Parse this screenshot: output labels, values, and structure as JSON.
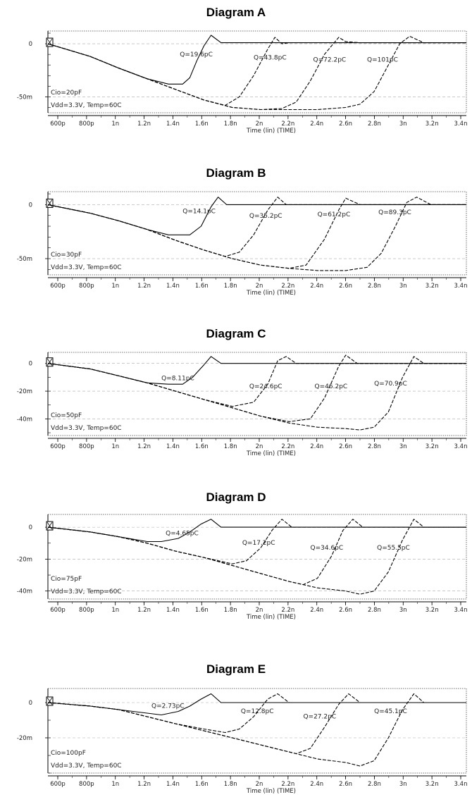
{
  "chart_data": [
    {
      "type": "line",
      "title": "Diagram A",
      "xlabel": "Time (lin) (TIME)",
      "x_ticks": [
        "600p",
        "800p",
        "1n",
        "1.2n",
        "1.4n",
        "1.6n",
        "1.8n",
        "2n",
        "2.2n",
        "2.4n",
        "2.6n",
        "2.8n",
        "3n",
        "3.2n",
        "3.4n"
      ],
      "y_ticks": [
        {
          "v": 0,
          "label": "0"
        },
        {
          "v": -50,
          "label": "-50m"
        }
      ],
      "ylim": [
        -65,
        12
      ],
      "xlim": [
        0.5,
        3.45
      ],
      "notes": [
        "Cio=20pF",
        "Vdd=3.3V, Temp=60C"
      ],
      "labels": [
        {
          "text": "Q=19.6pC",
          "x": 1.43,
          "y": -12
        },
        {
          "text": "Q=43.8pC",
          "x": 1.95,
          "y": -15
        },
        {
          "text": "Q=72.2pC",
          "x": 2.37,
          "y": -17
        },
        {
          "text": "Q=101pC",
          "x": 2.75,
          "y": -17
        }
      ],
      "series": [
        {
          "values_x": [
            0.5,
            0.8,
            1.0,
            1.2,
            1.35,
            1.45,
            1.5,
            1.55,
            1.6,
            1.65,
            1.72,
            2.6,
            3.45
          ],
          "values_y": [
            0,
            -12,
            -23,
            -33,
            -38,
            -38,
            -32,
            -16,
            -2,
            8,
            1,
            1,
            1
          ],
          "dash": false
        },
        {
          "values_x": [
            0.5,
            0.8,
            1.0,
            1.2,
            1.4,
            1.6,
            1.75,
            1.85,
            1.95,
            2.05,
            2.1,
            2.15,
            2.2,
            3.45
          ],
          "values_y": [
            0,
            -12,
            -23,
            -33,
            -43,
            -53,
            -58,
            -50,
            -30,
            -5,
            6,
            0,
            1,
            1
          ],
          "dash": true
        },
        {
          "values_x": [
            0.5,
            0.8,
            1.0,
            1.2,
            1.4,
            1.6,
            1.8,
            2.0,
            2.15,
            2.25,
            2.35,
            2.45,
            2.55,
            2.6,
            2.7,
            3.45
          ],
          "values_y": [
            0,
            -12,
            -23,
            -33,
            -43,
            -53,
            -60,
            -62,
            -61,
            -55,
            -35,
            -10,
            6,
            2,
            1,
            1
          ],
          "dash": true
        },
        {
          "values_x": [
            0.5,
            0.8,
            1.0,
            1.2,
            1.4,
            1.6,
            1.8,
            2.0,
            2.2,
            2.4,
            2.6,
            2.7,
            2.8,
            2.9,
            2.98,
            3.05,
            3.15,
            3.45
          ],
          "values_y": [
            0,
            -12,
            -23,
            -33,
            -43,
            -53,
            -60,
            -62,
            -62,
            -62,
            -60,
            -57,
            -45,
            -20,
            0,
            7,
            1,
            1
          ],
          "dash": true
        }
      ]
    },
    {
      "type": "line",
      "title": "Diagram B",
      "xlabel": "Time (lin) (TIME)",
      "x_ticks": [
        "600p",
        "800p",
        "1n",
        "1.2n",
        "1.4n",
        "1.6n",
        "1.8n",
        "2n",
        "2.2n",
        "2.4n",
        "2.6n",
        "2.8n",
        "3n",
        "3.2n",
        "3.4n"
      ],
      "y_ticks": [
        {
          "v": 0,
          "label": "0"
        },
        {
          "v": -50,
          "label": "-50m"
        }
      ],
      "ylim": [
        -65,
        12
      ],
      "xlim": [
        0.5,
        3.45
      ],
      "notes": [
        "Cio=30pF",
        "Vdd=3.3V, Temp=60C"
      ],
      "labels": [
        {
          "text": "Q=14.1pC",
          "x": 1.45,
          "y": -8
        },
        {
          "text": "Q=35.2pC",
          "x": 1.92,
          "y": -12
        },
        {
          "text": "Q=61.2pC",
          "x": 2.4,
          "y": -11
        },
        {
          "text": "Q=89.3pC",
          "x": 2.83,
          "y": -9
        }
      ],
      "series": [
        {
          "values_x": [
            0.5,
            0.8,
            1.0,
            1.2,
            1.35,
            1.5,
            1.58,
            1.65,
            1.7,
            1.76,
            2.6,
            3.45
          ],
          "values_y": [
            0,
            -8,
            -15,
            -23,
            -28,
            -28,
            -20,
            -2,
            7,
            0,
            0,
            0
          ],
          "dash": false
        },
        {
          "values_x": [
            0.5,
            0.8,
            1.0,
            1.2,
            1.4,
            1.6,
            1.75,
            1.85,
            1.95,
            2.05,
            2.12,
            2.18,
            3.45
          ],
          "values_y": [
            0,
            -8,
            -15,
            -23,
            -33,
            -42,
            -48,
            -44,
            -28,
            -5,
            7,
            0,
            0
          ],
          "dash": true
        },
        {
          "values_x": [
            0.5,
            0.8,
            1.0,
            1.2,
            1.4,
            1.6,
            1.8,
            2.0,
            2.2,
            2.32,
            2.45,
            2.55,
            2.6,
            2.7,
            3.45
          ],
          "values_y": [
            0,
            -8,
            -15,
            -23,
            -33,
            -42,
            -50,
            -56,
            -59,
            -56,
            -32,
            -5,
            6,
            0,
            0
          ],
          "dash": true
        },
        {
          "values_x": [
            0.5,
            0.8,
            1.0,
            1.2,
            1.4,
            1.6,
            1.8,
            2.0,
            2.2,
            2.4,
            2.6,
            2.75,
            2.85,
            2.95,
            3.03,
            3.1,
            3.2,
            3.45
          ],
          "values_y": [
            0,
            -8,
            -15,
            -23,
            -33,
            -42,
            -50,
            -56,
            -59,
            -61,
            -61,
            -58,
            -45,
            -20,
            2,
            7,
            0,
            0
          ],
          "dash": true
        }
      ]
    },
    {
      "type": "line",
      "title": "Diagram C",
      "xlabel": "Time (lin) (TIME)",
      "x_ticks": [
        "600p",
        "800p",
        "1n",
        "1.2n",
        "1.4n",
        "1.6n",
        "1.8n",
        "2n",
        "2.2n",
        "2.4n",
        "2.6n",
        "2.8n",
        "3n",
        "3.2n",
        "3.4n"
      ],
      "y_ticks": [
        {
          "v": 0,
          "label": "0"
        },
        {
          "v": -20,
          "label": "-20m"
        },
        {
          "v": -40,
          "label": "-40m"
        }
      ],
      "ylim": [
        -52,
        8
      ],
      "xlim": [
        0.5,
        3.45
      ],
      "notes": [
        "Cio=50pF",
        "Vdd=3.3V, Temp=60C"
      ],
      "labels": [
        {
          "text": "Q=8.11pC",
          "x": 1.3,
          "y": -12
        },
        {
          "text": "Q=24.6pC",
          "x": 1.92,
          "y": -18
        },
        {
          "text": "Q=46.2pC",
          "x": 2.38,
          "y": -18
        },
        {
          "text": "Q=70.9pC",
          "x": 2.8,
          "y": -16
        }
      ],
      "series": [
        {
          "values_x": [
            0.5,
            0.8,
            1.0,
            1.2,
            1.35,
            1.45,
            1.52,
            1.6,
            1.65,
            1.72,
            2.6,
            3.45
          ],
          "values_y": [
            0,
            -4,
            -9,
            -14,
            -15,
            -15,
            -10,
            -1,
            5,
            0,
            0,
            0
          ],
          "dash": false
        },
        {
          "values_x": [
            0.5,
            0.8,
            1.0,
            1.2,
            1.4,
            1.6,
            1.8,
            1.95,
            2.05,
            2.12,
            2.18,
            2.25,
            3.45
          ],
          "values_y": [
            0,
            -4,
            -9,
            -14,
            -20,
            -26,
            -31,
            -28,
            -15,
            2,
            5,
            0,
            0
          ],
          "dash": true
        },
        {
          "values_x": [
            0.5,
            0.8,
            1.0,
            1.2,
            1.4,
            1.6,
            1.8,
            2.0,
            2.2,
            2.35,
            2.45,
            2.55,
            2.6,
            2.68,
            3.45
          ],
          "values_y": [
            0,
            -4,
            -9,
            -14,
            -20,
            -26,
            -32,
            -38,
            -42,
            -40,
            -25,
            -2,
            6,
            0,
            0
          ],
          "dash": true
        },
        {
          "values_x": [
            0.5,
            0.8,
            1.0,
            1.2,
            1.4,
            1.6,
            1.8,
            2.0,
            2.2,
            2.4,
            2.6,
            2.7,
            2.8,
            2.9,
            3.0,
            3.08,
            3.15,
            3.45
          ],
          "values_y": [
            0,
            -4,
            -9,
            -14,
            -20,
            -26,
            -32,
            -38,
            -43,
            -46,
            -47,
            -48,
            -46,
            -35,
            -10,
            5,
            0,
            0
          ],
          "dash": true
        }
      ]
    },
    {
      "type": "line",
      "title": "Diagram D",
      "xlabel": "Time (lin) (TIME)",
      "x_ticks": [
        "600p",
        "800p",
        "1n",
        "1.2n",
        "1.4n",
        "1.6n",
        "1.8n",
        "2n",
        "2.2n",
        "2.4n",
        "2.6n",
        "2.8n",
        "3n",
        "3.2n",
        "3.4n"
      ],
      "y_ticks": [
        {
          "v": 0,
          "label": "0"
        },
        {
          "v": -20,
          "label": "-20m"
        },
        {
          "v": -40,
          "label": "-40m"
        }
      ],
      "ylim": [
        -45,
        8
      ],
      "xlim": [
        0.5,
        3.45
      ],
      "notes": [
        "Cio=75pF",
        "Vdd=3.3V, Temp=60C"
      ],
      "labels": [
        {
          "text": "Q=4.65pC",
          "x": 1.33,
          "y": -5
        },
        {
          "text": "Q=17.2pC",
          "x": 1.87,
          "y": -11
        },
        {
          "text": "Q=34.6pC",
          "x": 2.35,
          "y": -14
        },
        {
          "text": "Q=55.5pC",
          "x": 2.82,
          "y": -14
        }
      ],
      "series": [
        {
          "values_x": [
            0.5,
            0.8,
            1.0,
            1.2,
            1.3,
            1.42,
            1.5,
            1.58,
            1.65,
            1.72,
            2.6,
            3.45
          ],
          "values_y": [
            0,
            -3,
            -6,
            -9,
            -9,
            -7,
            -3,
            2,
            5,
            0,
            0,
            0
          ],
          "dash": false
        },
        {
          "values_x": [
            0.5,
            0.8,
            1.0,
            1.2,
            1.4,
            1.6,
            1.8,
            1.9,
            2.0,
            2.08,
            2.15,
            2.22,
            3.45
          ],
          "values_y": [
            0,
            -3,
            -6,
            -10,
            -15,
            -19,
            -23,
            -21,
            -13,
            -2,
            5,
            0,
            0
          ],
          "dash": true
        },
        {
          "values_x": [
            0.5,
            0.8,
            1.0,
            1.2,
            1.4,
            1.6,
            1.8,
            2.0,
            2.2,
            2.3,
            2.4,
            2.5,
            2.58,
            2.65,
            2.72,
            3.45
          ],
          "values_y": [
            0,
            -3,
            -6,
            -10,
            -15,
            -19,
            -24,
            -29,
            -34,
            -36,
            -32,
            -18,
            -2,
            5,
            0,
            0
          ],
          "dash": true
        },
        {
          "values_x": [
            0.5,
            0.8,
            1.0,
            1.2,
            1.4,
            1.6,
            1.8,
            2.0,
            2.2,
            2.4,
            2.6,
            2.7,
            2.8,
            2.9,
            3.0,
            3.08,
            3.15,
            3.45
          ],
          "values_y": [
            0,
            -3,
            -6,
            -10,
            -15,
            -19,
            -24,
            -29,
            -34,
            -38,
            -40,
            -42,
            -40,
            -28,
            -8,
            5,
            0,
            0
          ],
          "dash": true
        }
      ]
    },
    {
      "type": "line",
      "title": "Diagram E",
      "xlabel": "Time (lin) (TIME)",
      "x_ticks": [
        "600p",
        "800p",
        "1n",
        "1.2n",
        "1.4n",
        "1.6n",
        "1.8n",
        "2n",
        "2.2n",
        "2.4n",
        "2.6n",
        "2.8n",
        "3n",
        "3.2n",
        "3.4n"
      ],
      "y_ticks": [
        {
          "v": 0,
          "label": "0"
        },
        {
          "v": -20,
          "label": "-20m"
        }
      ],
      "ylim": [
        -40,
        8
      ],
      "xlim": [
        0.5,
        3.45
      ],
      "notes": [
        "Cio=100pF",
        "Vdd=3.3V, Temp=60C"
      ],
      "labels": [
        {
          "text": "Q=2.73pC",
          "x": 1.23,
          "y": -3
        },
        {
          "text": "Q=12.8pC",
          "x": 1.86,
          "y": -6
        },
        {
          "text": "Q=27.2pC",
          "x": 2.3,
          "y": -9
        },
        {
          "text": "Q=45.1pC",
          "x": 2.8,
          "y": -6
        }
      ],
      "series": [
        {
          "values_x": [
            0.5,
            0.8,
            1.0,
            1.2,
            1.3,
            1.42,
            1.5,
            1.58,
            1.65,
            1.72,
            2.6,
            3.45
          ],
          "values_y": [
            0,
            -2,
            -4,
            -6,
            -7,
            -5,
            -2,
            2,
            5,
            0,
            0,
            0
          ],
          "dash": false
        },
        {
          "values_x": [
            0.5,
            0.8,
            1.0,
            1.2,
            1.4,
            1.6,
            1.75,
            1.85,
            1.95,
            2.05,
            2.12,
            2.2,
            3.45
          ],
          "values_y": [
            0,
            -2,
            -4,
            -8,
            -12,
            -15,
            -17,
            -15,
            -8,
            2,
            5,
            0,
            0
          ],
          "dash": true
        },
        {
          "values_x": [
            0.5,
            0.8,
            1.0,
            1.2,
            1.4,
            1.6,
            1.8,
            2.0,
            2.15,
            2.25,
            2.35,
            2.45,
            2.55,
            2.62,
            2.7,
            3.45
          ],
          "values_y": [
            0,
            -2,
            -4,
            -8,
            -12,
            -16,
            -20,
            -24,
            -27,
            -29,
            -26,
            -14,
            -1,
            5,
            0,
            0
          ],
          "dash": true
        },
        {
          "values_x": [
            0.5,
            0.8,
            1.0,
            1.2,
            1.4,
            1.6,
            1.8,
            2.0,
            2.2,
            2.4,
            2.6,
            2.7,
            2.8,
            2.9,
            3.0,
            3.08,
            3.15,
            3.45
          ],
          "values_y": [
            0,
            -2,
            -4,
            -8,
            -12,
            -16,
            -20,
            -24,
            -28,
            -32,
            -34,
            -36,
            -33,
            -20,
            -4,
            5,
            0,
            0
          ],
          "dash": true
        }
      ]
    }
  ]
}
